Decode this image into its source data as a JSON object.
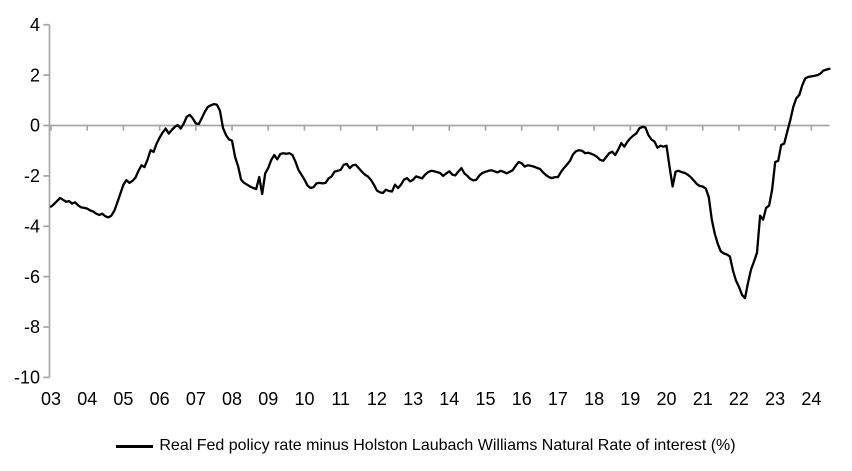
{
  "chart_data": {
    "type": "line",
    "title": "",
    "xlabel": "",
    "ylabel": "",
    "x_frequency": "monthly",
    "x_range": [
      "2003-01",
      "2024-07"
    ],
    "x_tick_labels": [
      "03",
      "04",
      "05",
      "06",
      "07",
      "08",
      "09",
      "10",
      "11",
      "12",
      "13",
      "14",
      "15",
      "16",
      "17",
      "18",
      "19",
      "20",
      "21",
      "22",
      "23",
      "24"
    ],
    "y_tick_values": [
      4,
      2,
      0,
      -2,
      -4,
      -6,
      -8,
      -10
    ],
    "y_tick_labels": [
      "4",
      "2",
      "0",
      "-2",
      "-4",
      "-6",
      "-8",
      "-10"
    ],
    "ylim": [
      -10,
      4
    ],
    "grid": "zero-line-only",
    "legend_position": "bottom-center",
    "axis_color": "#a6a6a6",
    "line_color": "#000000",
    "background_color": "#ffffff",
    "series": [
      {
        "name": "Real Fed policy rate minus Holston Laubach Williams Natural Rate of interest (%)",
        "color": "#000000",
        "values": [
          -3.22,
          -3.12,
          -3.0,
          -2.88,
          -2.95,
          -3.03,
          -3.0,
          -3.1,
          -3.05,
          -3.17,
          -3.25,
          -3.27,
          -3.3,
          -3.37,
          -3.42,
          -3.5,
          -3.55,
          -3.5,
          -3.6,
          -3.65,
          -3.58,
          -3.38,
          -3.05,
          -2.7,
          -2.35,
          -2.17,
          -2.28,
          -2.2,
          -2.07,
          -1.8,
          -1.58,
          -1.65,
          -1.35,
          -0.98,
          -1.05,
          -0.72,
          -0.48,
          -0.28,
          -0.12,
          -0.32,
          -0.18,
          -0.06,
          0.02,
          -0.12,
          0.08,
          0.35,
          0.42,
          0.28,
          0.08,
          0.06,
          0.3,
          0.55,
          0.74,
          0.8,
          0.85,
          0.82,
          0.58,
          -0.1,
          -0.38,
          -0.55,
          -0.6,
          -1.25,
          -1.62,
          -2.15,
          -2.28,
          -2.35,
          -2.42,
          -2.48,
          -2.52,
          -2.05,
          -2.72,
          -1.9,
          -1.69,
          -1.36,
          -1.17,
          -1.34,
          -1.13,
          -1.1,
          -1.12,
          -1.1,
          -1.17,
          -1.43,
          -1.76,
          -1.95,
          -2.15,
          -2.38,
          -2.48,
          -2.45,
          -2.3,
          -2.28,
          -2.3,
          -2.28,
          -2.1,
          -2.02,
          -1.83,
          -1.8,
          -1.76,
          -1.56,
          -1.52,
          -1.69,
          -1.58,
          -1.56,
          -1.7,
          -1.83,
          -1.95,
          -2.02,
          -2.15,
          -2.35,
          -2.58,
          -2.65,
          -2.68,
          -2.55,
          -2.6,
          -2.62,
          -2.35,
          -2.48,
          -2.35,
          -2.15,
          -2.09,
          -2.22,
          -2.15,
          -2.02,
          -2.06,
          -2.1,
          -1.95,
          -1.85,
          -1.8,
          -1.82,
          -1.85,
          -1.89,
          -2.0,
          -1.9,
          -1.82,
          -1.95,
          -1.98,
          -1.83,
          -1.69,
          -1.9,
          -2.0,
          -2.12,
          -2.18,
          -2.15,
          -1.98,
          -1.88,
          -1.84,
          -1.8,
          -1.78,
          -1.82,
          -1.86,
          -1.8,
          -1.84,
          -1.9,
          -1.84,
          -1.78,
          -1.6,
          -1.45,
          -1.5,
          -1.63,
          -1.58,
          -1.6,
          -1.63,
          -1.68,
          -1.72,
          -1.85,
          -1.96,
          -2.05,
          -2.09,
          -2.05,
          -2.05,
          -1.85,
          -1.69,
          -1.55,
          -1.4,
          -1.15,
          -1.02,
          -0.98,
          -1.0,
          -1.1,
          -1.08,
          -1.12,
          -1.17,
          -1.25,
          -1.36,
          -1.4,
          -1.25,
          -1.1,
          -1.04,
          -1.17,
          -0.95,
          -0.7,
          -0.84,
          -0.65,
          -0.51,
          -0.4,
          -0.31,
          -0.11,
          -0.05,
          -0.08,
          -0.38,
          -0.55,
          -0.64,
          -0.88,
          -0.8,
          -0.84,
          -0.8,
          -1.63,
          -2.42,
          -1.83,
          -1.8,
          -1.85,
          -1.88,
          -1.95,
          -2.05,
          -2.18,
          -2.32,
          -2.4,
          -2.42,
          -2.5,
          -2.85,
          -3.74,
          -4.3,
          -4.7,
          -5.0,
          -5.08,
          -5.12,
          -5.2,
          -5.75,
          -6.15,
          -6.4,
          -6.72,
          -6.85,
          -6.25,
          -5.72,
          -5.4,
          -5.05,
          -3.58,
          -3.74,
          -3.27,
          -3.18,
          -2.55,
          -1.45,
          -1.4,
          -0.77,
          -0.72,
          -0.25,
          0.2,
          0.74,
          1.08,
          1.21,
          1.6,
          1.87,
          1.93,
          1.95,
          1.97,
          2.0,
          2.06,
          2.18,
          2.22,
          2.25
        ]
      }
    ]
  },
  "legend": {
    "label": "Real Fed policy rate minus Holston Laubach Williams Natural Rate of interest (%)"
  }
}
